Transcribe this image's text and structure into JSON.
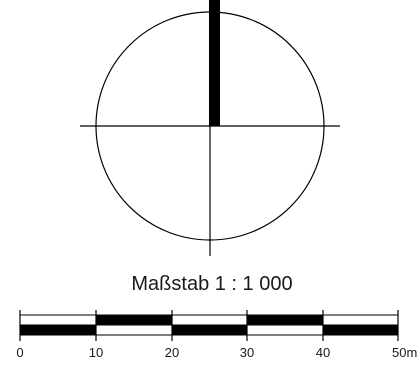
{
  "scale": {
    "title": "Maßstab 1 : 1 000",
    "labels": [
      "0",
      "10",
      "20",
      "30",
      "40",
      "50m"
    ]
  },
  "colors": {
    "ink": "#000000",
    "background": "#ffffff"
  }
}
